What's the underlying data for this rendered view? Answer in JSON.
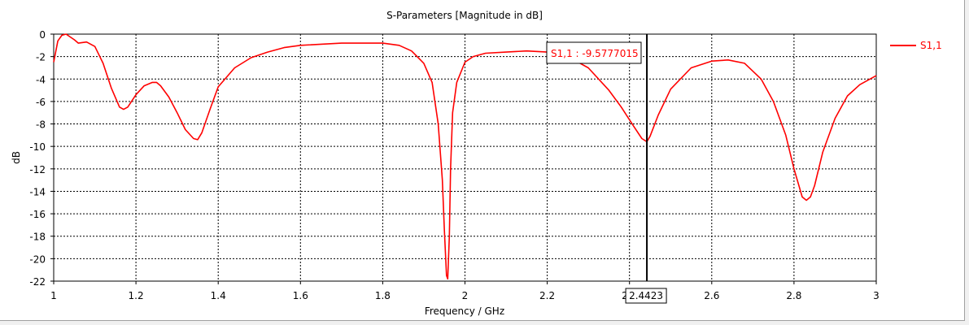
{
  "chart_data": {
    "type": "line",
    "title": "S-Parameters [Magnitude in dB]",
    "xlabel": "Frequency / GHz",
    "ylabel": "dB",
    "xlim": [
      1,
      3
    ],
    "ylim": [
      -22,
      0
    ],
    "x_ticks": [
      "1",
      "1.2",
      "1.4",
      "1.6",
      "1.8",
      "2",
      "2.2",
      "2.4",
      "2.6",
      "2.8",
      "3"
    ],
    "y_ticks": [
      "0",
      "-2",
      "-4",
      "-6",
      "-8",
      "-10",
      "-12",
      "-14",
      "-16",
      "-18",
      "-20",
      "-22"
    ],
    "grid": true,
    "legend_position": "top-right",
    "series": [
      {
        "name": "S1,1",
        "color": "#ff0000",
        "x": [
          1.0,
          1.01,
          1.02,
          1.03,
          1.05,
          1.06,
          1.08,
          1.1,
          1.12,
          1.14,
          1.16,
          1.17,
          1.18,
          1.2,
          1.22,
          1.24,
          1.25,
          1.26,
          1.28,
          1.3,
          1.32,
          1.34,
          1.35,
          1.36,
          1.38,
          1.4,
          1.44,
          1.48,
          1.52,
          1.56,
          1.6,
          1.7,
          1.8,
          1.84,
          1.87,
          1.9,
          1.92,
          1.935,
          1.945,
          1.95,
          1.955,
          1.958,
          1.962,
          1.965,
          1.97,
          1.98,
          2.0,
          2.02,
          2.05,
          2.1,
          2.15,
          2.2,
          2.25,
          2.3,
          2.35,
          2.38,
          2.41,
          2.43,
          2.4423,
          2.45,
          2.47,
          2.5,
          2.55,
          2.6,
          2.64,
          2.68,
          2.72,
          2.75,
          2.78,
          2.8,
          2.82,
          2.83,
          2.84,
          2.85,
          2.87,
          2.9,
          2.93,
          2.96,
          3.0
        ],
        "values": [
          -2.5,
          -0.6,
          -0.1,
          0.0,
          -0.5,
          -0.8,
          -0.7,
          -1.1,
          -2.6,
          -4.8,
          -6.5,
          -6.7,
          -6.5,
          -5.4,
          -4.6,
          -4.3,
          -4.3,
          -4.6,
          -5.6,
          -7.0,
          -8.5,
          -9.3,
          -9.4,
          -8.8,
          -6.7,
          -4.7,
          -3.0,
          -2.1,
          -1.6,
          -1.2,
          -1.0,
          -0.8,
          -0.8,
          -1.0,
          -1.5,
          -2.6,
          -4.3,
          -8.0,
          -13.0,
          -17.5,
          -21.5,
          -21.8,
          -18.0,
          -12.0,
          -7.0,
          -4.3,
          -2.5,
          -2.0,
          -1.7,
          -1.6,
          -1.5,
          -1.6,
          -2.0,
          -3.0,
          -5.0,
          -6.5,
          -8.2,
          -9.3,
          -9.58,
          -9.1,
          -7.2,
          -4.9,
          -3.0,
          -2.4,
          -2.3,
          -2.6,
          -4.0,
          -6.0,
          -9.0,
          -12.0,
          -14.5,
          -14.8,
          -14.5,
          -13.5,
          -10.5,
          -7.5,
          -5.5,
          -4.5,
          -3.7
        ]
      }
    ],
    "marker": {
      "label": "S1,1 : -9.5777015",
      "x_label": "2.4423",
      "x": 2.4423,
      "y": -9.5777015
    }
  }
}
